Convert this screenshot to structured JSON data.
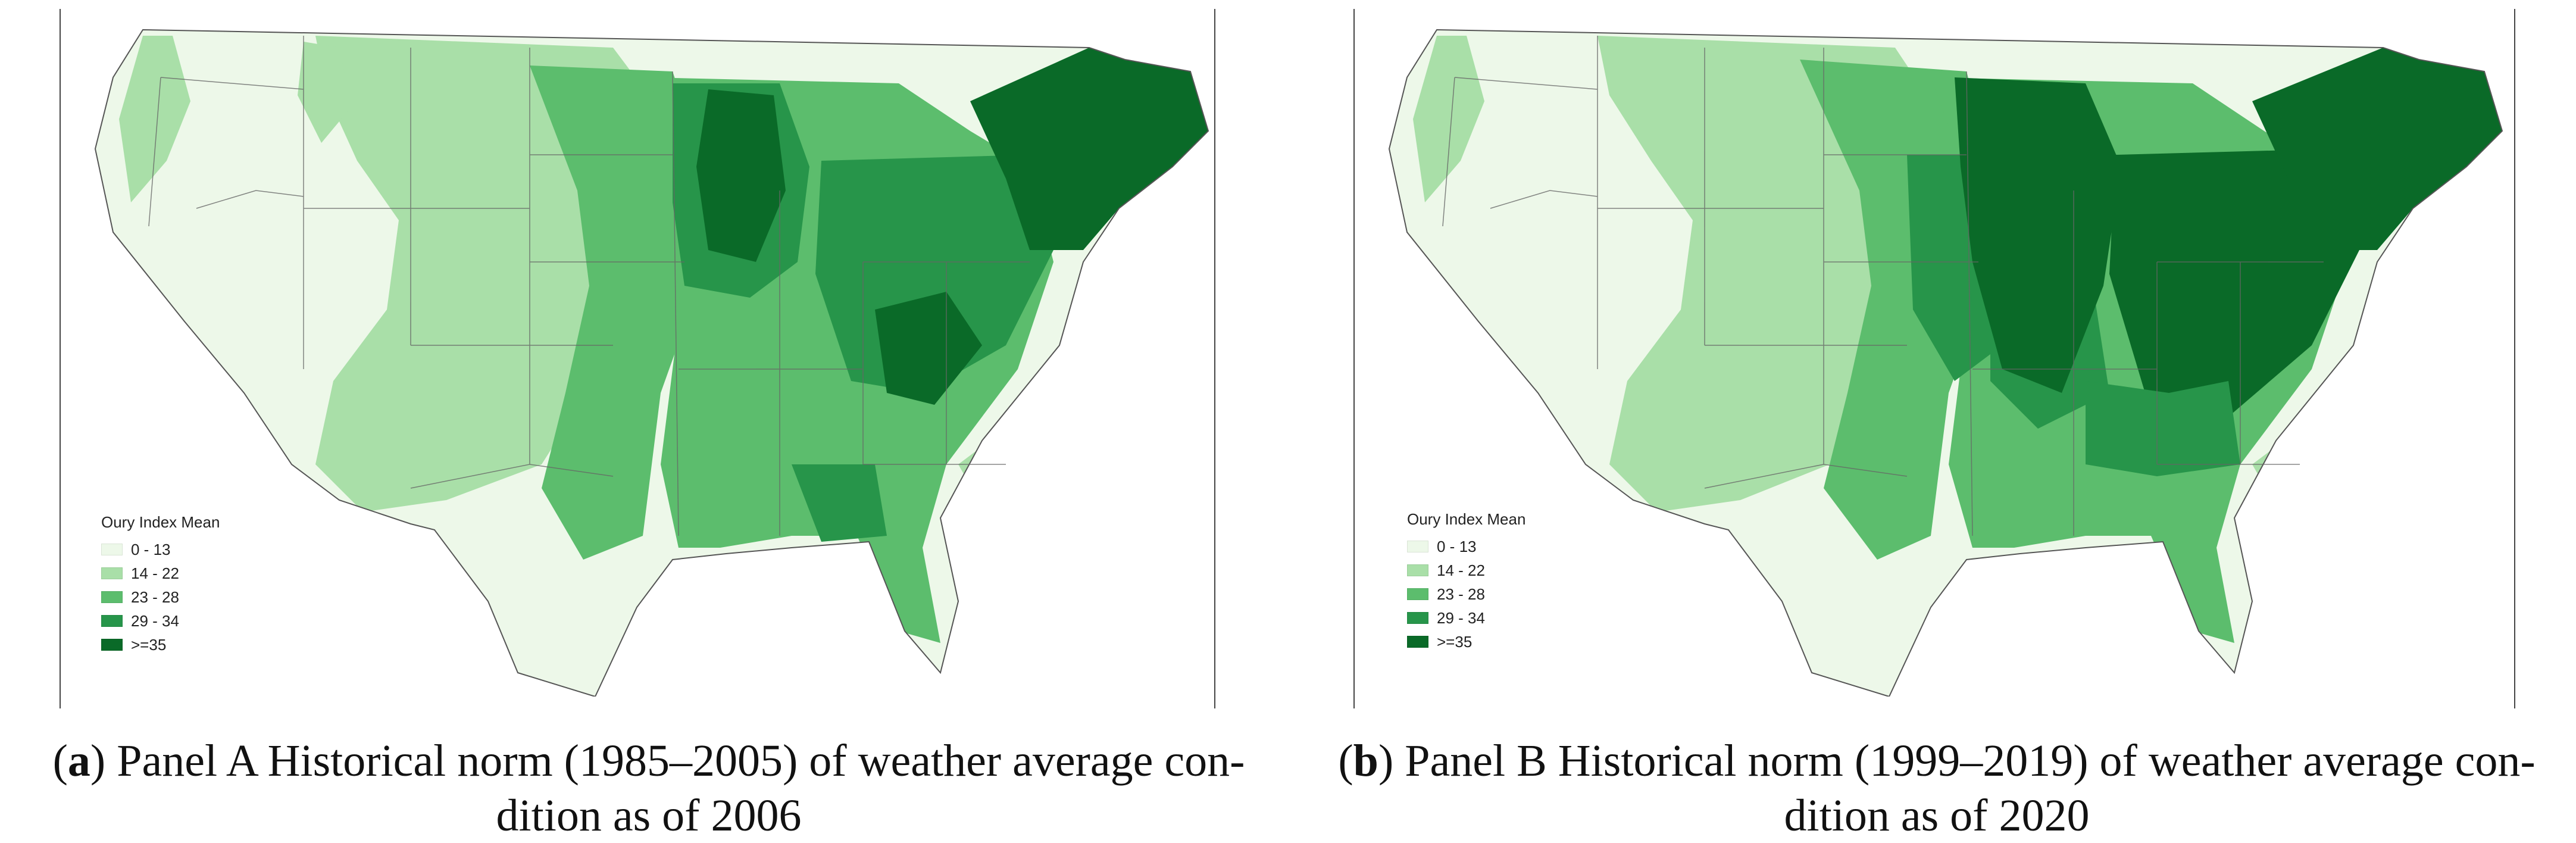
{
  "panels": [
    {
      "label": "a",
      "caption": "Panel A Historical norm (1985–2005) of weather average con-dition as of 2006",
      "caption_line1": "Panel A Historical norm (1985–2005) of weather average con-",
      "caption_line2": "dition as of 2006",
      "legend": {
        "title": "Oury Index Mean",
        "items": [
          {
            "label": "0 - 13",
            "color": "#edf8e9"
          },
          {
            "label": "14 - 22",
            "color": "#a9dfa8"
          },
          {
            "label": "23 - 28",
            "color": "#5cbd6d"
          },
          {
            "label": "29 - 34",
            "color": "#27954a"
          },
          {
            "label": ">=35",
            "color": "#0a6a28"
          }
        ]
      }
    },
    {
      "label": "b",
      "caption": "Panel B Historical norm (1999–2019) of weather average con-dition as of 2020",
      "caption_line1": "Panel B Historical norm (1999–2019) of weather average con-",
      "caption_line2": "dition as of 2020",
      "legend": {
        "title": "Oury Index Mean",
        "items": [
          {
            "label": "0 - 13",
            "color": "#edf8e9"
          },
          {
            "label": "14 - 22",
            "color": "#a9dfa8"
          },
          {
            "label": "23 - 28",
            "color": "#5cbd6d"
          },
          {
            "label": "29 - 34",
            "color": "#27954a"
          },
          {
            "label": ">=35",
            "color": "#0a6a28"
          }
        ]
      }
    }
  ]
}
